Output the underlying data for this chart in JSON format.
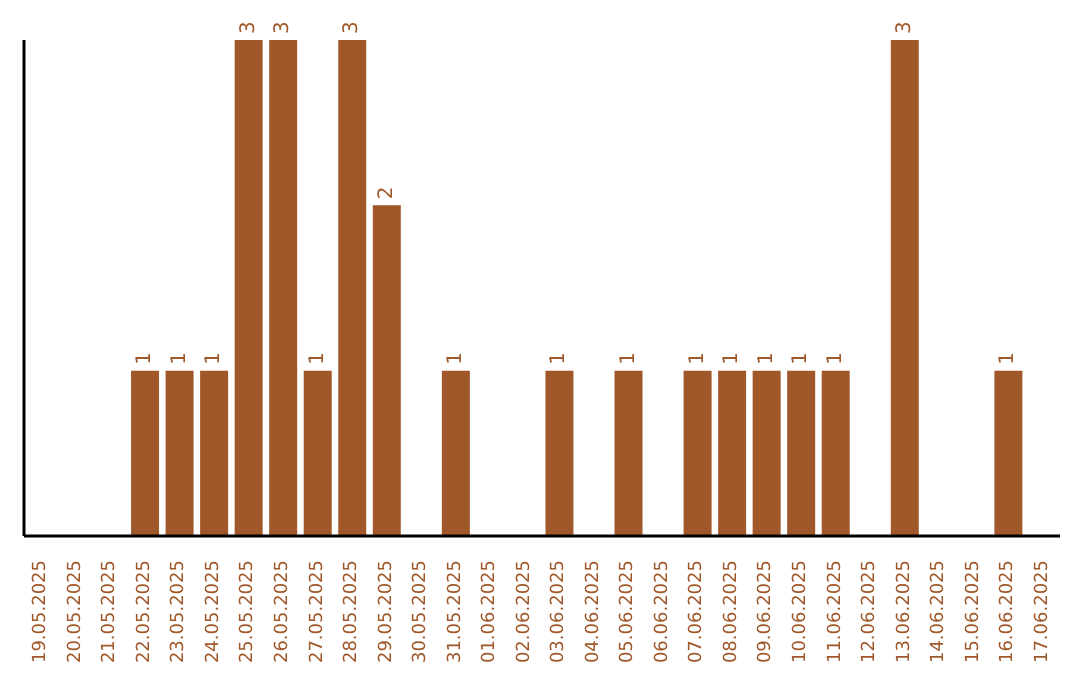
{
  "chart_data": {
    "type": "bar",
    "categories": [
      "19.05.2025",
      "20.05.2025",
      "21.05.2025",
      "22.05.2025",
      "23.05.2025",
      "24.05.2025",
      "25.05.2025",
      "26.05.2025",
      "27.05.2025",
      "28.05.2025",
      "29.05.2025",
      "30.05.2025",
      "31.05.2025",
      "01.06.2025",
      "02.06.2025",
      "03.06.2025",
      "04.06.2025",
      "05.06.2025",
      "06.06.2025",
      "07.06.2025",
      "08.06.2025",
      "09.06.2025",
      "10.06.2025",
      "11.06.2025",
      "12.06.2025",
      "13.06.2025",
      "14.06.2025",
      "15.06.2025",
      "16.06.2025",
      "17.06.2025"
    ],
    "values": [
      null,
      null,
      null,
      1,
      1,
      1,
      3,
      3,
      1,
      3,
      2,
      null,
      1,
      null,
      null,
      1,
      null,
      1,
      null,
      1,
      1,
      1,
      1,
      1,
      null,
      3,
      null,
      null,
      1,
      null
    ],
    "color": "#a0582a",
    "data_labels": true
  }
}
